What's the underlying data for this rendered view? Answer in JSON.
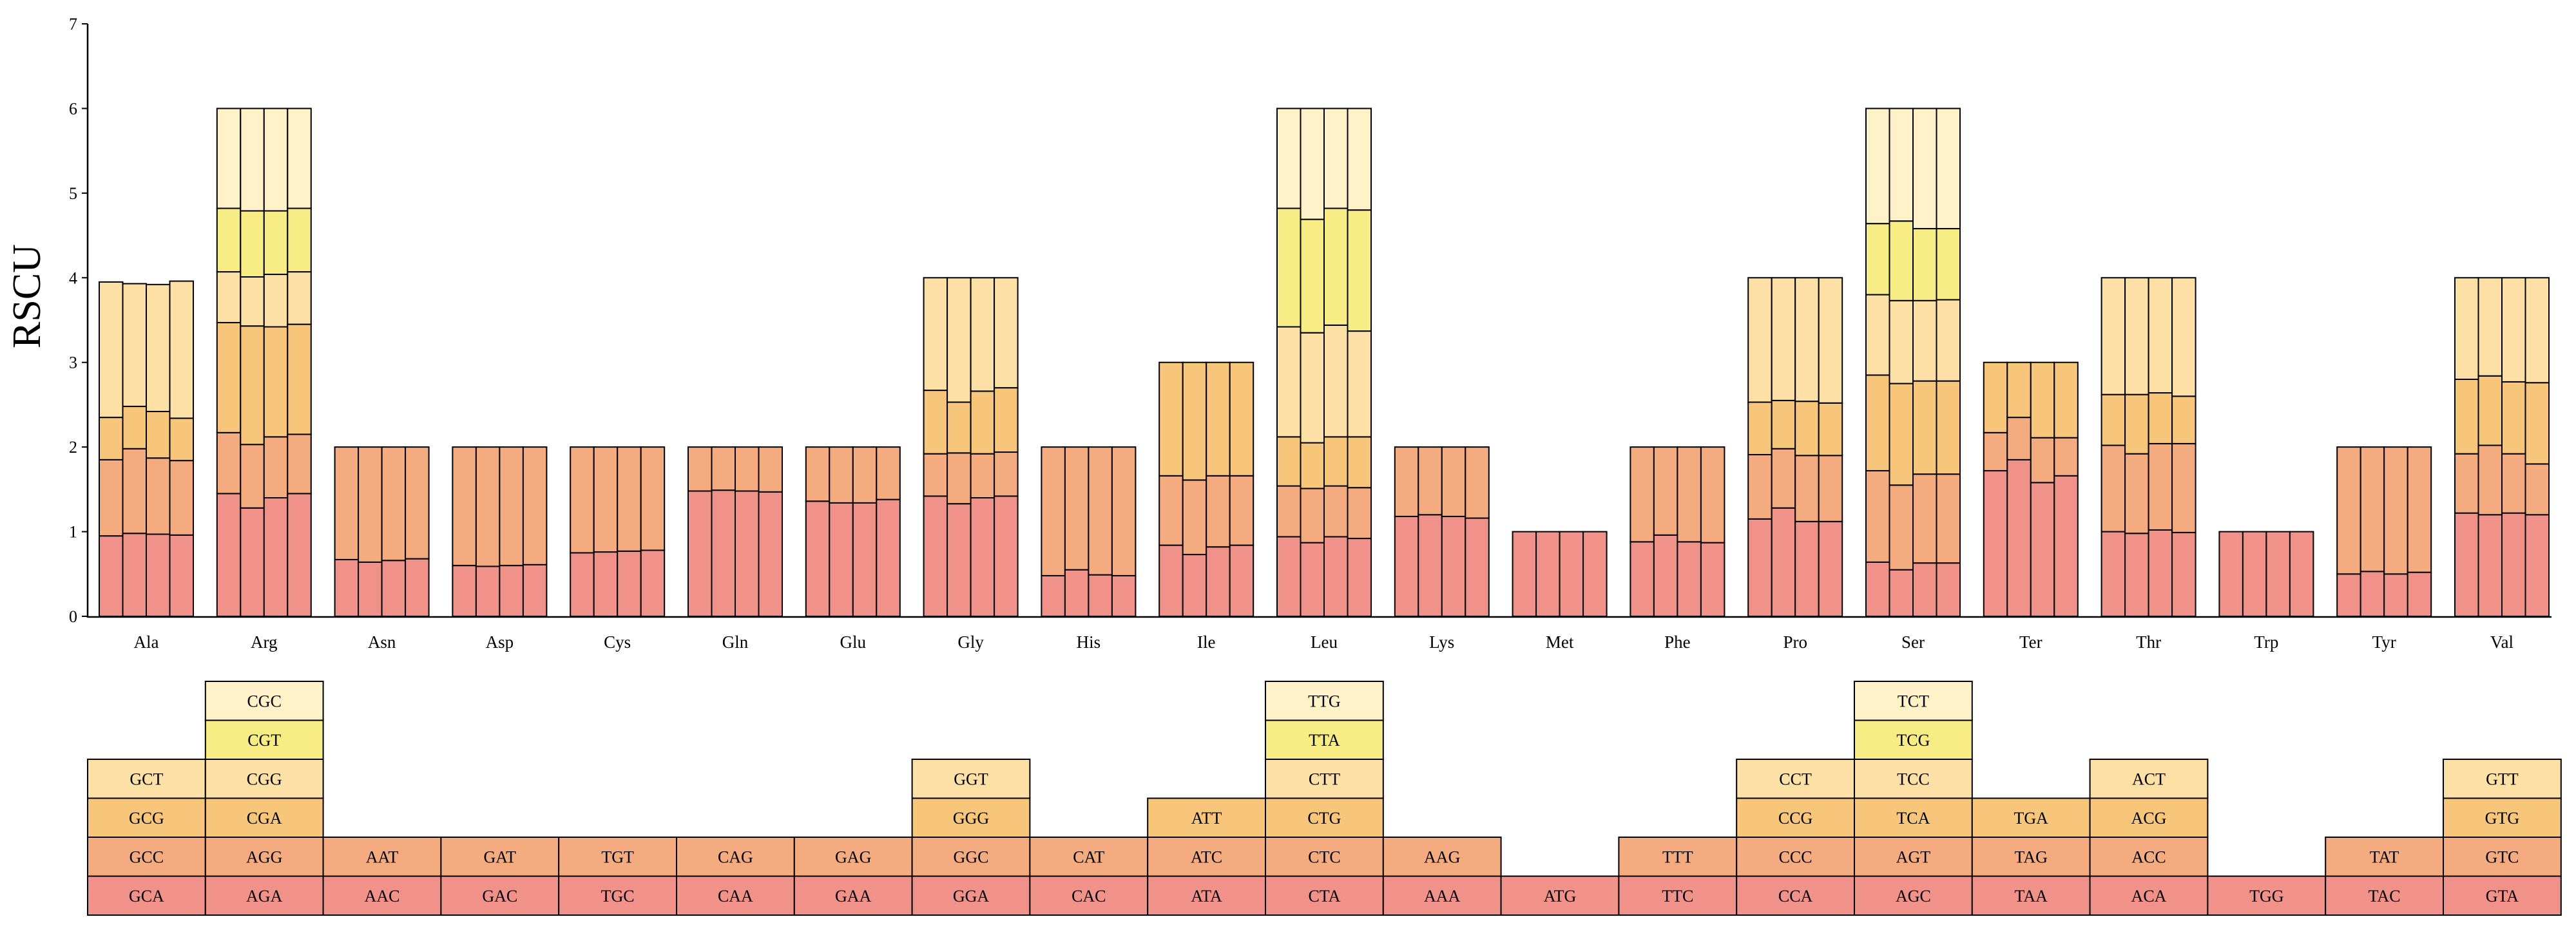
{
  "chart_data": {
    "type": "bar",
    "subtype": "stacked",
    "ylabel": "RSCU",
    "xlabel": "",
    "title": "",
    "ylim": [
      0,
      7
    ],
    "yticks": [
      0,
      1,
      2,
      3,
      4,
      5,
      6,
      7
    ],
    "bars_per_category": 4,
    "layer_colors": [
      "#F0918A",
      "#F5AB80",
      "#F8C67A",
      "#FCE0A6",
      "#F8EC85",
      "#FFF2C8"
    ],
    "categories": [
      {
        "aa": "Ala",
        "codons": [
          "GCA",
          "GCC",
          "GCG",
          "GCT"
        ],
        "stacks": [
          [
            0.95,
            0.9,
            0.5,
            1.6
          ],
          [
            0.98,
            1.0,
            0.5,
            1.45
          ],
          [
            0.97,
            0.9,
            0.55,
            1.5
          ],
          [
            0.96,
            0.88,
            0.5,
            1.62
          ]
        ]
      },
      {
        "aa": "Arg",
        "codons": [
          "AGA",
          "AGG",
          "CGA",
          "CGG",
          "CGT",
          "CGC"
        ],
        "stacks": [
          [
            1.45,
            0.72,
            1.3,
            0.6,
            0.75,
            1.18
          ],
          [
            1.28,
            0.75,
            1.4,
            0.58,
            0.78,
            1.21
          ],
          [
            1.4,
            0.72,
            1.3,
            0.62,
            0.75,
            1.21
          ],
          [
            1.45,
            0.7,
            1.3,
            0.62,
            0.75,
            1.18
          ]
        ]
      },
      {
        "aa": "Asn",
        "codons": [
          "AAC",
          "AAT"
        ],
        "stacks": [
          [
            0.67,
            1.33
          ],
          [
            0.64,
            1.36
          ],
          [
            0.66,
            1.34
          ],
          [
            0.68,
            1.32
          ]
        ]
      },
      {
        "aa": "Asp",
        "codons": [
          "GAC",
          "GAT"
        ],
        "stacks": [
          [
            0.6,
            1.4
          ],
          [
            0.59,
            1.41
          ],
          [
            0.6,
            1.4
          ],
          [
            0.61,
            1.39
          ]
        ]
      },
      {
        "aa": "Cys",
        "codons": [
          "TGC",
          "TGT"
        ],
        "stacks": [
          [
            0.75,
            1.25
          ],
          [
            0.76,
            1.24
          ],
          [
            0.77,
            1.23
          ],
          [
            0.78,
            1.22
          ]
        ]
      },
      {
        "aa": "Gln",
        "codons": [
          "CAA",
          "CAG"
        ],
        "stacks": [
          [
            1.48,
            0.52
          ],
          [
            1.49,
            0.51
          ],
          [
            1.48,
            0.52
          ],
          [
            1.47,
            0.53
          ]
        ]
      },
      {
        "aa": "Glu",
        "codons": [
          "GAA",
          "GAG"
        ],
        "stacks": [
          [
            1.36,
            0.64
          ],
          [
            1.34,
            0.66
          ],
          [
            1.34,
            0.66
          ],
          [
            1.38,
            0.62
          ]
        ]
      },
      {
        "aa": "Gly",
        "codons": [
          "GGA",
          "GGC",
          "GGG",
          "GGT"
        ],
        "stacks": [
          [
            1.42,
            0.5,
            0.75,
            1.33
          ],
          [
            1.33,
            0.6,
            0.6,
            1.47
          ],
          [
            1.4,
            0.52,
            0.74,
            1.34
          ],
          [
            1.42,
            0.52,
            0.76,
            1.3
          ]
        ]
      },
      {
        "aa": "His",
        "codons": [
          "CAC",
          "CAT"
        ],
        "stacks": [
          [
            0.48,
            1.52
          ],
          [
            0.55,
            1.45
          ],
          [
            0.49,
            1.51
          ],
          [
            0.48,
            1.52
          ]
        ]
      },
      {
        "aa": "Ile",
        "codons": [
          "ATA",
          "ATC",
          "ATT"
        ],
        "stacks": [
          [
            0.84,
            0.82,
            1.34
          ],
          [
            0.73,
            0.88,
            1.39
          ],
          [
            0.82,
            0.84,
            1.34
          ],
          [
            0.84,
            0.82,
            1.34
          ]
        ]
      },
      {
        "aa": "Leu",
        "codons": [
          "CTA",
          "CTC",
          "CTG",
          "CTT",
          "TTA",
          "TTG"
        ],
        "stacks": [
          [
            0.94,
            0.6,
            0.58,
            1.3,
            1.4,
            1.18
          ],
          [
            0.87,
            0.64,
            0.54,
            1.3,
            1.34,
            1.31
          ],
          [
            0.94,
            0.6,
            0.58,
            1.32,
            1.38,
            1.18
          ],
          [
            0.92,
            0.6,
            0.6,
            1.25,
            1.43,
            1.2
          ]
        ]
      },
      {
        "aa": "Lys",
        "codons": [
          "AAA",
          "AAG"
        ],
        "stacks": [
          [
            1.18,
            0.82
          ],
          [
            1.2,
            0.8
          ],
          [
            1.18,
            0.82
          ],
          [
            1.16,
            0.84
          ]
        ]
      },
      {
        "aa": "Met",
        "codons": [
          "ATG"
        ],
        "stacks": [
          [
            1.0
          ],
          [
            1.0
          ],
          [
            1.0
          ],
          [
            1.0
          ]
        ]
      },
      {
        "aa": "Phe",
        "codons": [
          "TTC",
          "TTT"
        ],
        "stacks": [
          [
            0.88,
            1.12
          ],
          [
            0.96,
            1.04
          ],
          [
            0.88,
            1.12
          ],
          [
            0.87,
            1.13
          ]
        ]
      },
      {
        "aa": "Pro",
        "codons": [
          "CCA",
          "CCC",
          "CCG",
          "CCT"
        ],
        "stacks": [
          [
            1.15,
            0.76,
            0.62,
            1.47
          ],
          [
            1.28,
            0.7,
            0.57,
            1.45
          ],
          [
            1.12,
            0.78,
            0.64,
            1.46
          ],
          [
            1.12,
            0.78,
            0.62,
            1.48
          ]
        ]
      },
      {
        "aa": "Ser",
        "codons": [
          "AGC",
          "AGT",
          "TCA",
          "TCC",
          "TCG",
          "TCT"
        ],
        "stacks": [
          [
            0.64,
            1.08,
            1.13,
            0.95,
            0.84,
            1.36
          ],
          [
            0.55,
            1.0,
            1.2,
            0.98,
            0.94,
            1.33
          ],
          [
            0.63,
            1.05,
            1.1,
            0.95,
            0.85,
            1.42
          ],
          [
            0.63,
            1.05,
            1.1,
            0.96,
            0.84,
            1.42
          ]
        ]
      },
      {
        "aa": "Ter",
        "codons": [
          "TAA",
          "TAG",
          "TGA"
        ],
        "stacks": [
          [
            1.72,
            0.45,
            0.83
          ],
          [
            1.85,
            0.5,
            0.65
          ],
          [
            1.58,
            0.53,
            0.89
          ],
          [
            1.66,
            0.45,
            0.89
          ]
        ]
      },
      {
        "aa": "Thr",
        "codons": [
          "ACA",
          "ACC",
          "ACG",
          "ACT"
        ],
        "stacks": [
          [
            1.0,
            1.02,
            0.6,
            1.38
          ],
          [
            0.98,
            0.94,
            0.7,
            1.38
          ],
          [
            1.02,
            1.02,
            0.6,
            1.36
          ],
          [
            0.99,
            1.05,
            0.56,
            1.4
          ]
        ]
      },
      {
        "aa": "Trp",
        "codons": [
          "TGG"
        ],
        "stacks": [
          [
            1.0
          ],
          [
            1.0
          ],
          [
            1.0
          ],
          [
            1.0
          ]
        ]
      },
      {
        "aa": "Tyr",
        "codons": [
          "TAC",
          "TAT"
        ],
        "stacks": [
          [
            0.5,
            1.5
          ],
          [
            0.53,
            1.47
          ],
          [
            0.5,
            1.5
          ],
          [
            0.52,
            1.48
          ]
        ]
      },
      {
        "aa": "Val",
        "codons": [
          "GTA",
          "GTC",
          "GTG",
          "GTT"
        ],
        "stacks": [
          [
            1.22,
            0.7,
            0.88,
            1.2
          ],
          [
            1.2,
            0.82,
            0.82,
            1.16
          ],
          [
            1.22,
            0.7,
            0.85,
            1.23
          ],
          [
            1.2,
            0.6,
            0.96,
            1.24
          ]
        ]
      }
    ]
  }
}
